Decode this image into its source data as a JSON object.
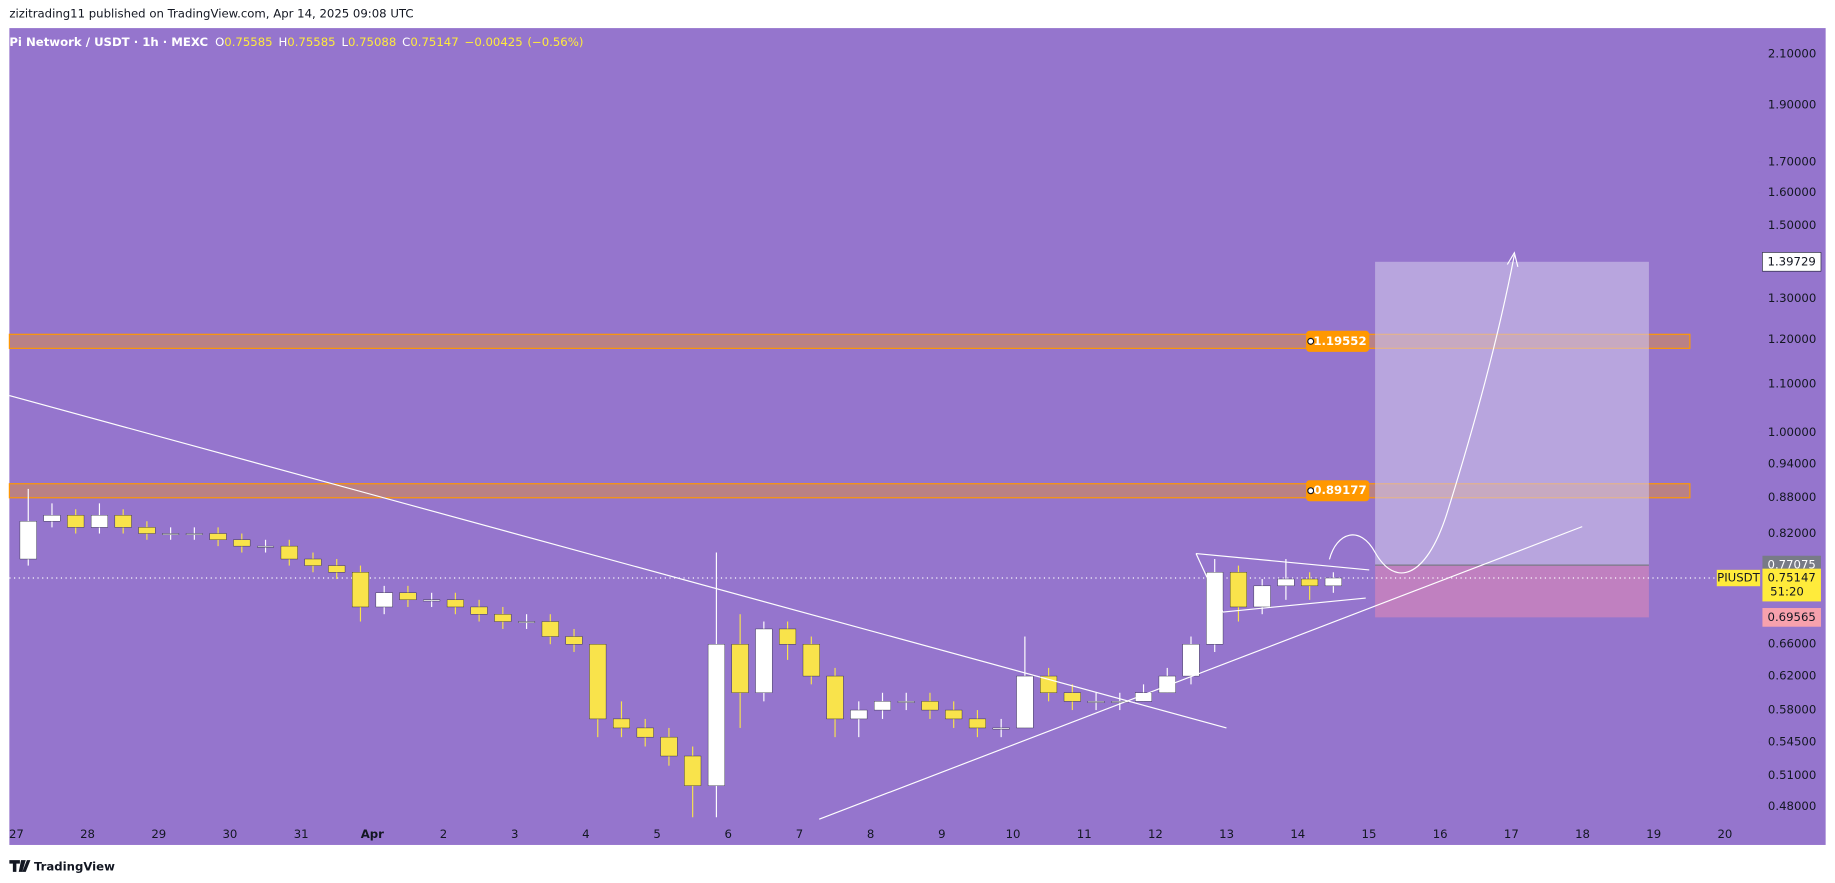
{
  "page": {
    "publisher_line": "zizitrading11 published on TradingView.com, Apr 14, 2025 09:08 UTC",
    "footer": "TradingView"
  },
  "chart_data": {
    "type": "candlestick",
    "title": "Pi Network / USDT · 1h · MEXC",
    "ohlc_header": [
      {
        "name": "O",
        "value": 0.75585
      },
      {
        "name": "H",
        "value": 0.75585
      },
      {
        "name": "L",
        "value": 0.75088
      },
      {
        "name": "C",
        "value": 0.75147
      }
    ],
    "change": {
      "value": -0.00425,
      "label": "−0.00425"
    },
    "change_percent": {
      "value": -0.56,
      "label": "(−0.56%)"
    },
    "categories": [
      "27",
      "28",
      "29",
      "30",
      "31",
      "Apr",
      "2",
      "3",
      "4",
      "5",
      "6",
      "7",
      "8",
      "9",
      "10",
      "11",
      "12",
      "13",
      "14",
      "15",
      "16",
      "17",
      "18",
      "19",
      "20"
    ],
    "open": [
      0.78,
      0.84,
      0.85,
      0.83,
      0.85,
      0.83,
      0.82,
      0.82,
      0.82,
      0.81,
      0.8,
      0.8,
      0.78,
      0.77,
      0.76,
      0.71,
      0.73,
      0.72,
      0.72,
      0.71,
      0.7,
      0.69,
      0.69,
      0.67,
      0.66,
      0.57,
      0.56,
      0.55,
      0.53,
      0.5,
      0.66,
      0.6,
      0.68,
      0.66,
      0.62,
      0.57,
      0.58,
      0.59,
      0.59,
      0.58,
      0.57,
      0.56,
      0.56,
      0.62,
      0.6,
      0.59,
      0.59,
      0.59,
      0.6,
      0.62,
      0.66,
      0.76,
      0.71,
      0.74,
      0.75,
      0.74
    ],
    "high": [
      0.895,
      0.87,
      0.86,
      0.87,
      0.86,
      0.84,
      0.83,
      0.83,
      0.83,
      0.82,
      0.81,
      0.81,
      0.79,
      0.78,
      0.77,
      0.74,
      0.74,
      0.73,
      0.73,
      0.72,
      0.71,
      0.7,
      0.7,
      0.68,
      0.66,
      0.59,
      0.57,
      0.56,
      0.54,
      0.79,
      0.7,
      0.69,
      0.69,
      0.67,
      0.63,
      0.59,
      0.6,
      0.6,
      0.6,
      0.59,
      0.58,
      0.57,
      0.67,
      0.63,
      0.61,
      0.6,
      0.6,
      0.61,
      0.63,
      0.67,
      0.78,
      0.77,
      0.75,
      0.78,
      0.76,
      0.76
    ],
    "low": [
      0.77,
      0.83,
      0.82,
      0.82,
      0.82,
      0.81,
      0.81,
      0.81,
      0.8,
      0.79,
      0.79,
      0.77,
      0.76,
      0.75,
      0.69,
      0.7,
      0.71,
      0.71,
      0.7,
      0.69,
      0.68,
      0.68,
      0.66,
      0.65,
      0.55,
      0.55,
      0.54,
      0.52,
      0.47,
      0.47,
      0.56,
      0.59,
      0.64,
      0.61,
      0.55,
      0.55,
      0.57,
      0.58,
      0.57,
      0.56,
      0.55,
      0.55,
      0.56,
      0.59,
      0.58,
      0.58,
      0.58,
      0.59,
      0.6,
      0.61,
      0.65,
      0.69,
      0.7,
      0.72,
      0.72,
      0.73
    ],
    "close": [
      0.84,
      0.85,
      0.83,
      0.85,
      0.83,
      0.82,
      0.82,
      0.82,
      0.81,
      0.8,
      0.8,
      0.78,
      0.77,
      0.76,
      0.71,
      0.73,
      0.72,
      0.72,
      0.71,
      0.7,
      0.69,
      0.69,
      0.67,
      0.66,
      0.57,
      0.56,
      0.55,
      0.53,
      0.5,
      0.66,
      0.6,
      0.68,
      0.66,
      0.62,
      0.57,
      0.58,
      0.59,
      0.59,
      0.58,
      0.57,
      0.56,
      0.56,
      0.62,
      0.6,
      0.59,
      0.59,
      0.59,
      0.6,
      0.62,
      0.66,
      0.76,
      0.71,
      0.74,
      0.75,
      0.74,
      0.75147
    ],
    "up_color": "#ffffff",
    "down_color": "#f9e34b",
    "log_scale": true,
    "ylim": [
      0.465,
      2.21
    ],
    "yticks": [
      {
        "value": 2.1,
        "label": "2.10000"
      },
      {
        "value": 1.9,
        "label": "1.90000"
      },
      {
        "value": 1.7,
        "label": "1.70000"
      },
      {
        "value": 1.6,
        "label": "1.60000"
      },
      {
        "value": 1.5,
        "label": "1.50000"
      },
      {
        "value": 1.3,
        "label": "1.30000"
      },
      {
        "value": 1.2,
        "label": "1.20000"
      },
      {
        "value": 1.1,
        "label": "1.10000"
      },
      {
        "value": 1.0,
        "label": "1.00000"
      },
      {
        "value": 0.94,
        "label": "0.94000"
      },
      {
        "value": 0.88,
        "label": "0.88000"
      },
      {
        "value": 0.82,
        "label": "0.82000"
      },
      {
        "value": 0.66,
        "label": "0.66000"
      },
      {
        "value": 0.62,
        "label": "0.62000"
      },
      {
        "value": 0.58,
        "label": "0.58000"
      },
      {
        "value": 0.545,
        "label": "0.54500"
      },
      {
        "value": 0.51,
        "label": "0.51000"
      },
      {
        "value": 0.48,
        "label": "0.48000"
      }
    ],
    "levels": [
      {
        "value": 1.19552,
        "color": "#ff9800"
      },
      {
        "value": 0.89177,
        "color": "#ff9800"
      }
    ],
    "position": {
      "target": 1.39729,
      "entry": 0.77075,
      "stop": 0.69565
    },
    "last_price": {
      "symbol": "PIUSDT",
      "value": 0.75147,
      "countdown": "51:20",
      "color": "#ffeb3b"
    }
  }
}
